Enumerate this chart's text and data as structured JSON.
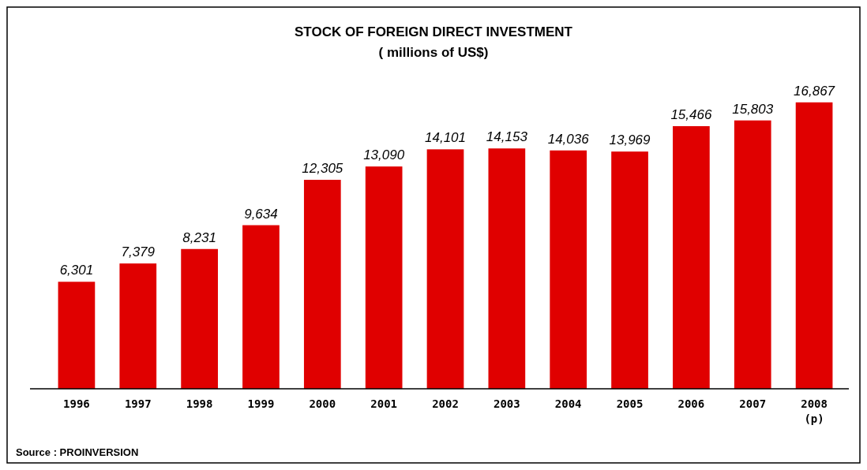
{
  "chart_data": {
    "type": "bar",
    "title": "STOCK OF FOREIGN DIRECT INVESTMENT",
    "subtitle": "( millions of US$)",
    "categories": [
      "1996",
      "1997",
      "1998",
      "1999",
      "2000",
      "2001",
      "2002",
      "2003",
      "2004",
      "2005",
      "2006",
      "2007",
      "2008 (p)"
    ],
    "values": [
      6301,
      7379,
      8231,
      9634,
      12305,
      13090,
      14101,
      14153,
      14036,
      13969,
      15466,
      15803,
      16867
    ],
    "value_labels": [
      "6,301",
      "7,379",
      "8,231",
      "9,634",
      "12,305",
      "13,090",
      "14,101",
      "14,153",
      "14,036",
      "13,969",
      "15,466",
      "15,803",
      "16,867"
    ],
    "color": "#e00000",
    "annotations": [
      "Source : PROINVERSION"
    ]
  }
}
